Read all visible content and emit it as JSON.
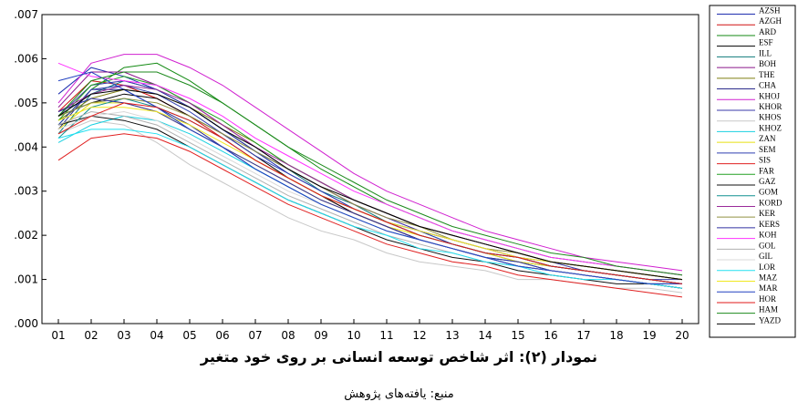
{
  "chart_data": {
    "type": "line",
    "x": [
      "01",
      "02",
      "03",
      "04",
      "05",
      "06",
      "07",
      "08",
      "09",
      "10",
      "11",
      "12",
      "13",
      "14",
      "15",
      "16",
      "17",
      "18",
      "19",
      "20"
    ],
    "ylim": [
      0,
      0.007
    ],
    "yticks": [
      ".000",
      ".001",
      ".002",
      ".003",
      ".004",
      ".005",
      ".006",
      ".007"
    ],
    "grid": false,
    "legend_position": "right",
    "series": [
      {
        "name": "AZSH",
        "color": "#1f2fb0",
        "values": [
          0.0052,
          0.0058,
          0.0056,
          0.0053,
          0.0049,
          0.0044,
          0.0039,
          0.0034,
          0.003,
          0.0026,
          0.0023,
          0.002,
          0.0018,
          0.0016,
          0.0014,
          0.0013,
          0.0012,
          0.0011,
          0.001,
          0.0009
        ]
      },
      {
        "name": "AZGH",
        "color": "#d01010",
        "values": [
          0.0048,
          0.0055,
          0.0054,
          0.0051,
          0.0047,
          0.0042,
          0.0037,
          0.0033,
          0.0029,
          0.0025,
          0.0022,
          0.0019,
          0.0017,
          0.0015,
          0.0014,
          0.0012,
          0.0011,
          0.001,
          0.0009,
          0.0009
        ]
      },
      {
        "name": "ARD",
        "color": "#138a13",
        "values": [
          0.0045,
          0.0053,
          0.0058,
          0.0059,
          0.0055,
          0.005,
          0.0045,
          0.004,
          0.0035,
          0.0031,
          0.0027,
          0.0024,
          0.0021,
          0.0019,
          0.0017,
          0.0015,
          0.0014,
          0.0013,
          0.0012,
          0.0011
        ]
      },
      {
        "name": "ESF",
        "color": "#000000",
        "values": [
          0.0047,
          0.005,
          0.0052,
          0.0051,
          0.0047,
          0.0043,
          0.0038,
          0.0033,
          0.0029,
          0.0025,
          0.0022,
          0.0019,
          0.0017,
          0.0015,
          0.0013,
          0.0012,
          0.0011,
          0.001,
          0.0009,
          0.0008
        ]
      },
      {
        "name": "ILL",
        "color": "#0e7a7a",
        "values": [
          0.0043,
          0.0052,
          0.0055,
          0.0053,
          0.0049,
          0.0044,
          0.0039,
          0.0035,
          0.003,
          0.0027,
          0.0023,
          0.0021,
          0.0018,
          0.0016,
          0.0015,
          0.0013,
          0.0012,
          0.0011,
          0.001,
          0.0009
        ]
      },
      {
        "name": "BOH",
        "color": "#8a168a",
        "values": [
          0.0049,
          0.0057,
          0.0057,
          0.0054,
          0.005,
          0.0045,
          0.004,
          0.0035,
          0.0031,
          0.0027,
          0.0024,
          0.0021,
          0.0019,
          0.0017,
          0.0015,
          0.0013,
          0.0012,
          0.0011,
          0.001,
          0.0009
        ]
      },
      {
        "name": "THE",
        "color": "#7f7f12",
        "values": [
          0.0046,
          0.0051,
          0.0053,
          0.0052,
          0.0049,
          0.0045,
          0.0041,
          0.0036,
          0.0032,
          0.0028,
          0.0025,
          0.0022,
          0.002,
          0.0018,
          0.0016,
          0.0014,
          0.0013,
          0.0012,
          0.0011,
          0.001
        ]
      },
      {
        "name": "CHA",
        "color": "#2b2b8c",
        "values": [
          0.0044,
          0.0053,
          0.0053,
          0.0049,
          0.0045,
          0.004,
          0.0035,
          0.0031,
          0.0027,
          0.0024,
          0.0021,
          0.0019,
          0.0017,
          0.0015,
          0.0013,
          0.0012,
          0.0011,
          0.001,
          0.0009,
          0.0008
        ]
      },
      {
        "name": "KHOJ",
        "color": "#d020d0",
        "values": [
          0.005,
          0.0059,
          0.0061,
          0.0061,
          0.0058,
          0.0054,
          0.0049,
          0.0044,
          0.0039,
          0.0034,
          0.003,
          0.0027,
          0.0024,
          0.0021,
          0.0019,
          0.0017,
          0.0015,
          0.0014,
          0.0013,
          0.0012
        ]
      },
      {
        "name": "KHOR",
        "color": "#3a3aa8",
        "values": [
          0.0047,
          0.0054,
          0.0055,
          0.0053,
          0.0049,
          0.0044,
          0.0039,
          0.0035,
          0.0031,
          0.0027,
          0.0024,
          0.0021,
          0.0019,
          0.0017,
          0.0015,
          0.0014,
          0.0012,
          0.0011,
          0.001,
          0.001
        ]
      },
      {
        "name": "KHOS",
        "color": "#c8c8c8",
        "values": [
          0.0043,
          0.0046,
          0.0045,
          0.0041,
          0.0036,
          0.0032,
          0.0028,
          0.0024,
          0.0021,
          0.0019,
          0.0016,
          0.0014,
          0.0013,
          0.0012,
          0.001,
          0.001,
          0.0009,
          0.0008,
          0.0008,
          0.0007
        ]
      },
      {
        "name": "KHOZ",
        "color": "#19d0e0",
        "values": [
          0.0041,
          0.0045,
          0.0047,
          0.0046,
          0.0043,
          0.0039,
          0.0035,
          0.0031,
          0.0027,
          0.0024,
          0.0021,
          0.0019,
          0.0017,
          0.0015,
          0.0014,
          0.0012,
          0.0011,
          0.001,
          0.0009,
          0.0009
        ]
      },
      {
        "name": "ZAN",
        "color": "#e8e010",
        "values": [
          0.0044,
          0.005,
          0.005,
          0.0048,
          0.0044,
          0.004,
          0.0036,
          0.0032,
          0.0028,
          0.0025,
          0.0022,
          0.002,
          0.0018,
          0.0016,
          0.0014,
          0.0013,
          0.0012,
          0.0011,
          0.001,
          0.0009
        ]
      },
      {
        "name": "SEM",
        "color": "#2f3fb0",
        "values": [
          0.0045,
          0.0053,
          0.0054,
          0.0052,
          0.0048,
          0.0043,
          0.0038,
          0.0034,
          0.003,
          0.0026,
          0.0023,
          0.0021,
          0.0018,
          0.0016,
          0.0015,
          0.0013,
          0.0012,
          0.0011,
          0.001,
          0.0009
        ]
      },
      {
        "name": "SIS",
        "color": "#e02020",
        "values": [
          0.0037,
          0.0042,
          0.0043,
          0.0042,
          0.0039,
          0.0035,
          0.0031,
          0.0027,
          0.0024,
          0.0021,
          0.0018,
          0.0016,
          0.0014,
          0.0013,
          0.0011,
          0.001,
          0.0009,
          0.0008,
          0.0007,
          0.0006
        ]
      },
      {
        "name": "FAR",
        "color": "#22a022",
        "values": [
          0.0046,
          0.0054,
          0.0056,
          0.0054,
          0.005,
          0.0046,
          0.0041,
          0.0036,
          0.0032,
          0.0028,
          0.0025,
          0.0022,
          0.002,
          0.0018,
          0.0016,
          0.0014,
          0.0013,
          0.0012,
          0.0011,
          0.001
        ]
      },
      {
        "name": "GAZ",
        "color": "#101010",
        "values": [
          0.0045,
          0.0047,
          0.0046,
          0.0044,
          0.004,
          0.0036,
          0.0032,
          0.0028,
          0.0025,
          0.0022,
          0.0019,
          0.0017,
          0.0015,
          0.0014,
          0.0012,
          0.0011,
          0.001,
          0.0009,
          0.0009,
          0.0008
        ]
      },
      {
        "name": "GOM",
        "color": "#109090",
        "values": [
          0.0042,
          0.0049,
          0.0051,
          0.0049,
          0.0046,
          0.0042,
          0.0037,
          0.0033,
          0.0029,
          0.0026,
          0.0023,
          0.002,
          0.0018,
          0.0016,
          0.0015,
          0.0013,
          0.0012,
          0.0011,
          0.001,
          0.0009
        ]
      },
      {
        "name": "KORD",
        "color": "#9a2a9a",
        "values": [
          0.0048,
          0.0052,
          0.0054,
          0.0053,
          0.005,
          0.0045,
          0.004,
          0.0036,
          0.0032,
          0.0028,
          0.0025,
          0.0022,
          0.002,
          0.0018,
          0.0016,
          0.0014,
          0.0013,
          0.0012,
          0.0011,
          0.001
        ]
      },
      {
        "name": "KER",
        "color": "#909040",
        "values": [
          0.0047,
          0.005,
          0.0051,
          0.005,
          0.0047,
          0.0043,
          0.0039,
          0.0035,
          0.0031,
          0.0027,
          0.0024,
          0.0022,
          0.0019,
          0.0017,
          0.0016,
          0.0014,
          0.0013,
          0.0012,
          0.0011,
          0.001
        ]
      },
      {
        "name": "KERS",
        "color": "#3030a0",
        "values": [
          0.0048,
          0.0051,
          0.005,
          0.0048,
          0.0044,
          0.004,
          0.0036,
          0.0032,
          0.0028,
          0.0025,
          0.0022,
          0.0019,
          0.0017,
          0.0015,
          0.0014,
          0.0012,
          0.0011,
          0.001,
          0.0009,
          0.0009
        ]
      },
      {
        "name": "KOH",
        "color": "#ff30ff",
        "values": [
          0.0059,
          0.0056,
          0.0055,
          0.0054,
          0.0051,
          0.0047,
          0.0042,
          0.0038,
          0.0034,
          0.003,
          0.0027,
          0.0024,
          0.0021,
          0.0019,
          0.0017,
          0.0015,
          0.0014,
          0.0013,
          0.0012,
          0.0011
        ]
      },
      {
        "name": "GOL",
        "color": "#b0b0b0",
        "values": [
          0.0045,
          0.0048,
          0.0047,
          0.0045,
          0.0041,
          0.0037,
          0.0033,
          0.0029,
          0.0026,
          0.0023,
          0.002,
          0.0018,
          0.0016,
          0.0014,
          0.0013,
          0.0012,
          0.0011,
          0.001,
          0.0009,
          0.0008
        ]
      },
      {
        "name": "GIL",
        "color": "#d8d8d8",
        "values": [
          0.0044,
          0.0047,
          0.0048,
          0.0046,
          0.0042,
          0.0038,
          0.0034,
          0.003,
          0.0027,
          0.0024,
          0.0021,
          0.0019,
          0.0017,
          0.0015,
          0.0013,
          0.0012,
          0.0011,
          0.001,
          0.0009,
          0.0009
        ]
      },
      {
        "name": "LOR",
        "color": "#22e0f0",
        "values": [
          0.0042,
          0.0044,
          0.0044,
          0.0043,
          0.004,
          0.0036,
          0.0032,
          0.0028,
          0.0025,
          0.0022,
          0.002,
          0.0017,
          0.0016,
          0.0014,
          0.0013,
          0.0011,
          0.001,
          0.001,
          0.0009,
          0.0008
        ]
      },
      {
        "name": "MAZ",
        "color": "#f0e820",
        "values": [
          0.0046,
          0.0049,
          0.0049,
          0.0048,
          0.0045,
          0.0041,
          0.0037,
          0.0033,
          0.0029,
          0.0026,
          0.0023,
          0.0021,
          0.0019,
          0.0017,
          0.0015,
          0.0014,
          0.0013,
          0.0012,
          0.0011,
          0.001
        ]
      },
      {
        "name": "MAR",
        "color": "#2040c0",
        "values": [
          0.0055,
          0.0057,
          0.0053,
          0.0049,
          0.0044,
          0.004,
          0.0035,
          0.0031,
          0.0027,
          0.0024,
          0.0021,
          0.0019,
          0.0017,
          0.0015,
          0.0013,
          0.0012,
          0.0011,
          0.001,
          0.0009,
          0.0009
        ]
      },
      {
        "name": "HOR",
        "color": "#e01818",
        "values": [
          0.0043,
          0.0047,
          0.005,
          0.0049,
          0.0046,
          0.0042,
          0.0037,
          0.0033,
          0.0029,
          0.0026,
          0.0023,
          0.002,
          0.0018,
          0.0016,
          0.0015,
          0.0013,
          0.0012,
          0.0011,
          0.001,
          0.0009
        ]
      },
      {
        "name": "HAM",
        "color": "#1c8a1c",
        "values": [
          0.0047,
          0.0055,
          0.0057,
          0.0057,
          0.0054,
          0.005,
          0.0045,
          0.004,
          0.0036,
          0.0032,
          0.0028,
          0.0025,
          0.0022,
          0.002,
          0.0018,
          0.0016,
          0.0015,
          0.0013,
          0.0012,
          0.0011
        ]
      },
      {
        "name": "YAZD",
        "color": "#000000",
        "values": [
          0.0047,
          0.0052,
          0.0053,
          0.0052,
          0.0049,
          0.0044,
          0.004,
          0.0035,
          0.0031,
          0.0028,
          0.0025,
          0.0022,
          0.002,
          0.0018,
          0.0016,
          0.0014,
          0.0013,
          0.0012,
          0.0011,
          0.001
        ]
      }
    ]
  },
  "caption": {
    "title": "نمودار (۲): اثر شاخص توسعه انسانی بر روی خود متغیر",
    "source": "منبع: یافته‌های پژوهش"
  }
}
